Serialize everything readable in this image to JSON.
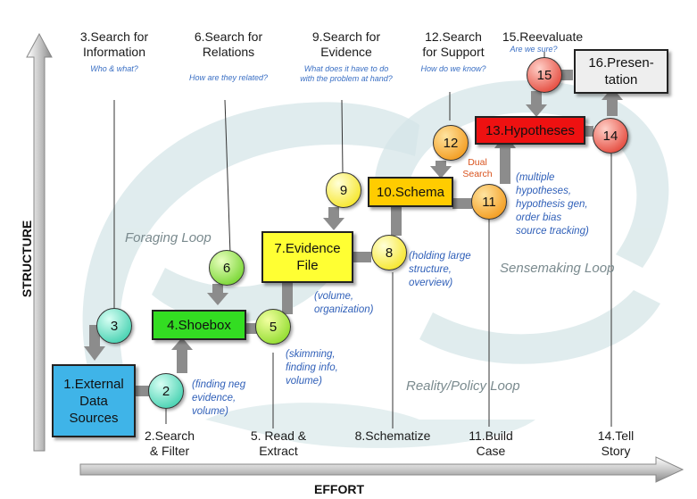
{
  "axes": {
    "y_label": "STRUCTURE",
    "x_label": "EFFORT"
  },
  "top_labels": [
    {
      "text": "3.Search for\nInformation",
      "hint": "Who & what?"
    },
    {
      "text": "6.Search for\nRelations",
      "hint": "How are they related?"
    },
    {
      "text": "9.Search for\nEvidence",
      "hint": "What does it have to do\nwith the problem at hand?"
    },
    {
      "text": "12.Search\nfor Support",
      "hint": "How do we know?"
    },
    {
      "text": "15.Reevaluate",
      "hint": "Are we sure?"
    }
  ],
  "bottom_labels": [
    "2.Search\n& Filter",
    "5. Read &\nExtract",
    "8.Schematize",
    "11.Build\nCase",
    "14.Tell\nStory"
  ],
  "boxes": {
    "external": "1.External\nData\nSources",
    "shoebox": "4.Shoebox",
    "evidence": "7.Evidence\nFile",
    "schema": "10.Schema",
    "hypotheses": "13.Hypotheses",
    "presentation": "16.Presen-\ntation"
  },
  "circles": {
    "c2": "2",
    "c3": "3",
    "c5": "5",
    "c6": "6",
    "c8": "8",
    "c9": "9",
    "c11": "11",
    "c12": "12",
    "c14": "14",
    "c15": "15"
  },
  "notes": {
    "n2": "(finding neg\nevidence,\nvolume)",
    "n5": "(skimming,\nfinding info,\nvolume)",
    "n7": "(volume,\norganization)",
    "n8": "(holding large\nstructure,\noverview)",
    "n11": "(multiple\nhypotheses,\nhypothesis gen,\norder bias\nsource tracking)"
  },
  "dual_search": "Dual\nSearch",
  "loops": {
    "foraging": "Foraging Loop",
    "sensemaking": "Sensemaking Loop",
    "reality": "Reality/Policy Loop"
  },
  "colors": {
    "external": "#3fb4e8",
    "shoebox": "#33dd22",
    "evidence": "#ffff33",
    "schema": "#ffcc00",
    "hypotheses": "#ee1111",
    "presentation": "#eeeeee",
    "green_circle": "#66dd22",
    "yellow_circle": "#ffee11",
    "orange_circle": "#ffaa11",
    "red_circle": "#ee5544"
  }
}
